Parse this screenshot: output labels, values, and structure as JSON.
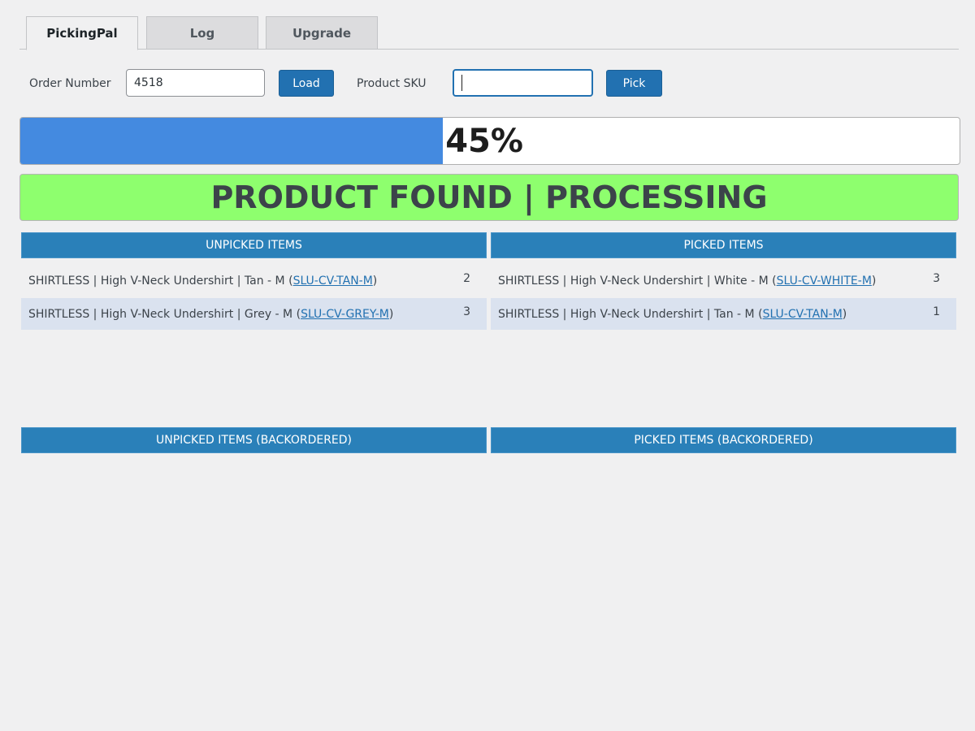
{
  "tabs": [
    {
      "label": "PickingPal",
      "active": true
    },
    {
      "label": "Log"
    },
    {
      "label": "Upgrade"
    }
  ],
  "form": {
    "order_label": "Order Number",
    "order_value": "4518",
    "load_label": "Load",
    "sku_label": "Product SKU",
    "sku_value": "",
    "pick_label": "Pick"
  },
  "progress": {
    "percent": 45,
    "label": "45%",
    "fill_color": "#448ae0"
  },
  "status": {
    "text": "PRODUCT FOUND | PROCESSING",
    "color": "#8eff6e"
  },
  "unpicked": {
    "title": "UNPICKED ITEMS",
    "items": [
      {
        "name": "SHIRTLESS | High V-Neck Undershirt | Tan - M",
        "sku": "SLU-CV-TAN-M",
        "qty": "2"
      },
      {
        "name": "SHIRTLESS | High V-Neck Undershirt | Grey - M",
        "sku": "SLU-CV-GREY-M",
        "qty": "3"
      }
    ]
  },
  "picked": {
    "title": "PICKED ITEMS",
    "items": [
      {
        "name": "SHIRTLESS | High V-Neck Undershirt | White - M",
        "sku": "SLU-CV-WHITE-M",
        "qty": "3"
      },
      {
        "name": "SHIRTLESS | High V-Neck Undershirt | Tan - M",
        "sku": "SLU-CV-TAN-M",
        "qty": "1"
      }
    ]
  },
  "unpicked_backordered": {
    "title": "UNPICKED ITEMS (BACKORDERED)"
  },
  "picked_backordered": {
    "title": "PICKED ITEMS (BACKORDERED)"
  },
  "colors": {
    "header": "#2a80b9",
    "button": "#2271b1"
  }
}
